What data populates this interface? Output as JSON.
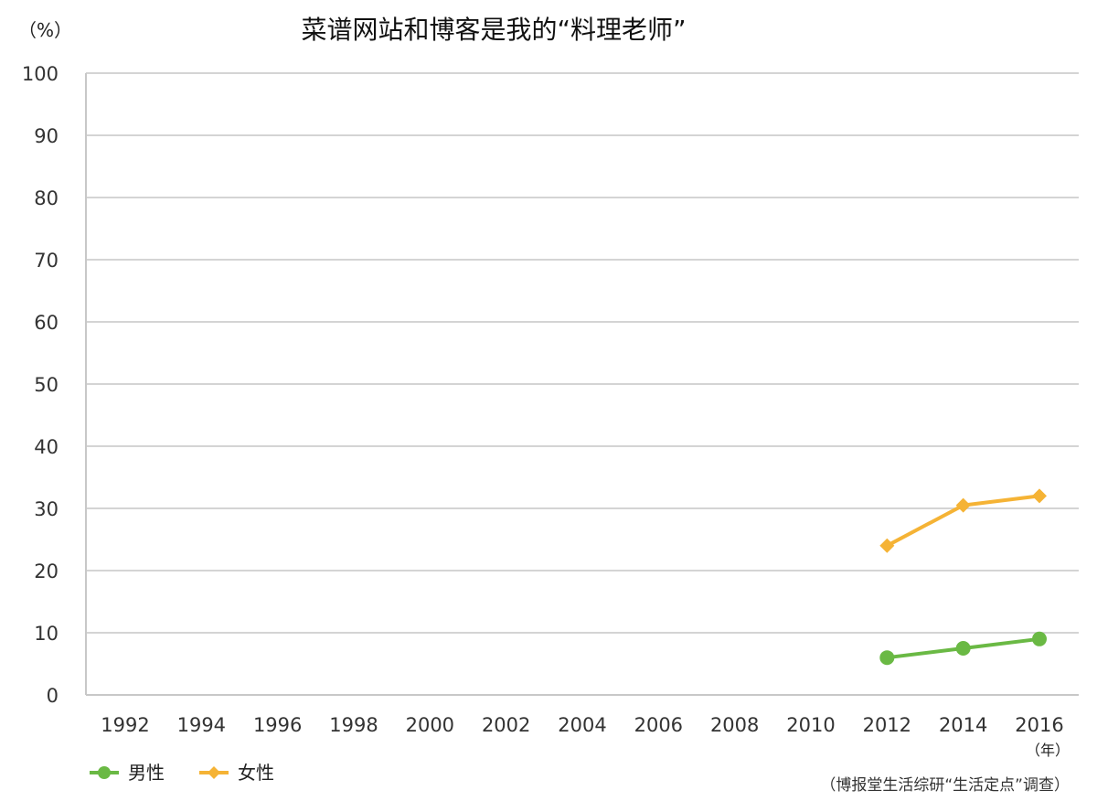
{
  "chart_data": {
    "type": "line",
    "title": "菜谱网站和博客是我的“料理老师”",
    "ylabel": "（%）",
    "xlabel": "（年）",
    "x": [
      "1992",
      "1994",
      "1996",
      "1998",
      "2000",
      "2002",
      "2004",
      "2006",
      "2008",
      "2010",
      "2012",
      "2014",
      "2016"
    ],
    "ylim": [
      0,
      100
    ],
    "yticks": [
      "0",
      "10",
      "20",
      "30",
      "40",
      "50",
      "60",
      "70",
      "80",
      "90",
      "100"
    ],
    "grid": true,
    "legend_position": "bottom-left",
    "series": [
      {
        "name": "男性",
        "marker": "circle",
        "color": "#6ab944",
        "values": [
          null,
          null,
          null,
          null,
          null,
          null,
          null,
          null,
          null,
          null,
          6,
          7.5,
          9
        ]
      },
      {
        "name": "女性",
        "marker": "diamond",
        "color": "#f5b335",
        "values": [
          null,
          null,
          null,
          null,
          null,
          null,
          null,
          null,
          null,
          null,
          24,
          30.5,
          32
        ]
      }
    ],
    "source": "（博报堂生活综研“生活定点”调查）"
  }
}
